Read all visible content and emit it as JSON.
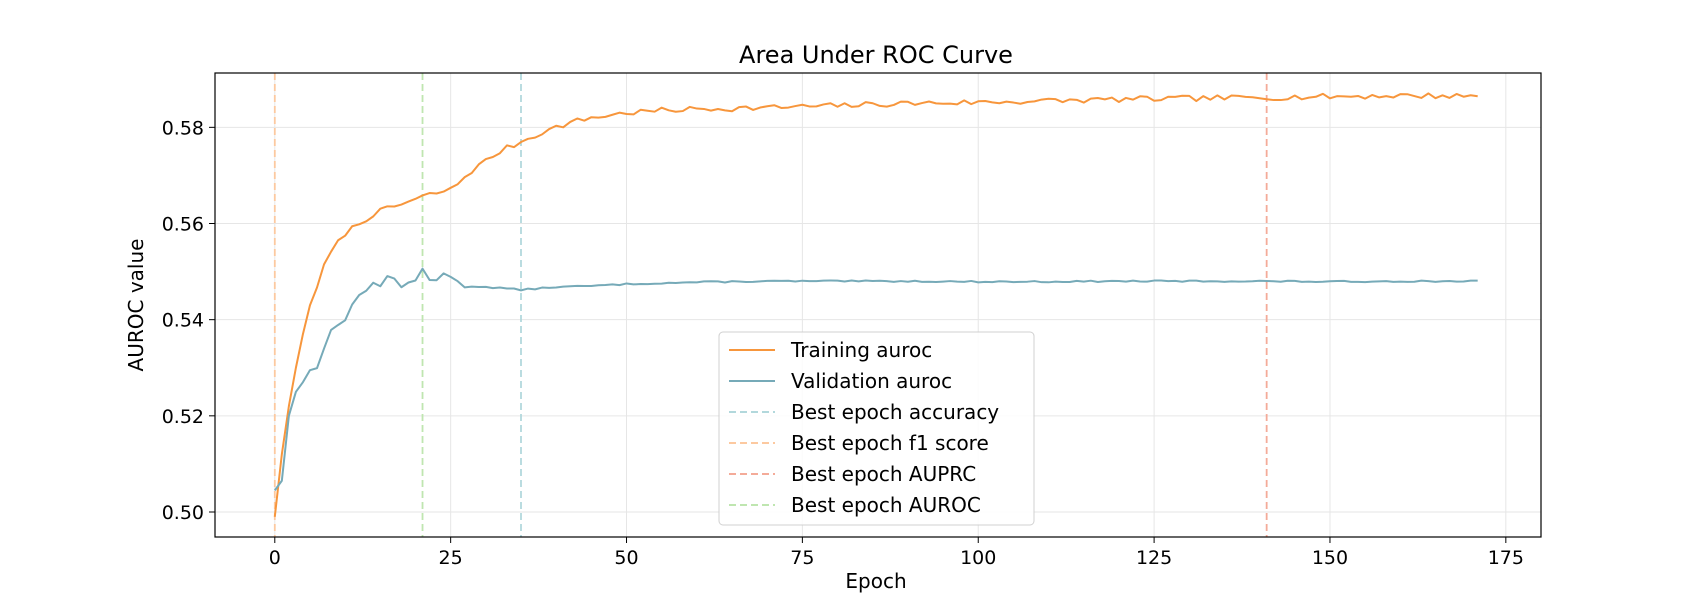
{
  "chart_data": {
    "type": "line",
    "title": "Area Under ROC Curve",
    "xlabel": "Epoch",
    "ylabel": "AUROC value",
    "xlim": [
      -8.5,
      180
    ],
    "ylim": [
      0.4948,
      0.5913
    ],
    "xticks": [
      0,
      25,
      50,
      75,
      100,
      125,
      150,
      175
    ],
    "yticks": [
      0.5,
      0.52,
      0.54,
      0.56,
      0.58
    ],
    "grid": true,
    "legend_position": "lower-center",
    "series": [
      {
        "name": "Training auroc",
        "color": "#f7963c",
        "style": "solid",
        "anchors": [
          [
            0,
            0.499
          ],
          [
            1,
            0.512
          ],
          [
            2,
            0.522
          ],
          [
            3,
            0.53
          ],
          [
            4,
            0.537
          ],
          [
            5,
            0.543
          ],
          [
            6,
            0.547
          ],
          [
            7,
            0.551
          ],
          [
            8,
            0.554
          ],
          [
            9,
            0.556
          ],
          [
            10,
            0.558
          ],
          [
            12,
            0.56
          ],
          [
            14,
            0.562
          ],
          [
            16,
            0.563
          ],
          [
            18,
            0.564
          ],
          [
            20,
            0.565
          ],
          [
            22,
            0.566
          ],
          [
            25,
            0.567
          ],
          [
            28,
            0.571
          ],
          [
            30,
            0.573
          ],
          [
            32,
            0.575
          ],
          [
            35,
            0.577
          ],
          [
            38,
            0.579
          ],
          [
            42,
            0.581
          ],
          [
            45,
            0.582
          ],
          [
            50,
            0.583
          ],
          [
            55,
            0.5835
          ],
          [
            60,
            0.5838
          ],
          [
            70,
            0.5841
          ],
          [
            80,
            0.5845
          ],
          [
            90,
            0.585
          ],
          [
            100,
            0.5852
          ],
          [
            110,
            0.5855
          ],
          [
            120,
            0.5858
          ],
          [
            130,
            0.586
          ],
          [
            140,
            0.5862
          ],
          [
            150,
            0.5864
          ],
          [
            160,
            0.5866
          ],
          [
            171,
            0.5865
          ]
        ],
        "noise": 0.0006,
        "seed": 7
      },
      {
        "name": "Validation auroc",
        "color": "#76aab8",
        "style": "solid",
        "anchors": [
          [
            0,
            0.5045
          ],
          [
            1,
            0.5065
          ],
          [
            2,
            0.52
          ],
          [
            3,
            0.525
          ],
          [
            4,
            0.527
          ],
          [
            5,
            0.5295
          ],
          [
            6,
            0.53
          ],
          [
            7,
            0.534
          ],
          [
            8,
            0.5378
          ],
          [
            9,
            0.539
          ],
          [
            10,
            0.54
          ],
          [
            11,
            0.5432
          ],
          [
            12,
            0.545
          ],
          [
            13,
            0.546
          ],
          [
            14,
            0.5478
          ],
          [
            15,
            0.547
          ],
          [
            16,
            0.549
          ],
          [
            17,
            0.5485
          ],
          [
            18,
            0.5468
          ],
          [
            19,
            0.5478
          ],
          [
            20,
            0.548
          ],
          [
            21,
            0.5506
          ],
          [
            22,
            0.5482
          ],
          [
            23,
            0.5482
          ],
          [
            24,
            0.5497
          ],
          [
            25,
            0.549
          ],
          [
            26,
            0.548
          ],
          [
            27,
            0.5466
          ],
          [
            28,
            0.547
          ],
          [
            30,
            0.5468
          ],
          [
            32,
            0.5466
          ],
          [
            35,
            0.5462
          ],
          [
            40,
            0.5468
          ],
          [
            45,
            0.547
          ],
          [
            50,
            0.5474
          ],
          [
            60,
            0.5478
          ],
          [
            70,
            0.548
          ],
          [
            80,
            0.548
          ],
          [
            90,
            0.548
          ],
          [
            100,
            0.5479
          ],
          [
            110,
            0.5479
          ],
          [
            120,
            0.548
          ],
          [
            130,
            0.548
          ],
          [
            140,
            0.548
          ],
          [
            150,
            0.5479
          ],
          [
            160,
            0.548
          ],
          [
            171,
            0.548
          ]
        ],
        "noise": 0.00015,
        "seed": 13
      }
    ],
    "vlines": [
      {
        "name": "Best epoch accuracy",
        "x": 35,
        "color": "#b2d8dc"
      },
      {
        "name": "Best epoch f1 score",
        "x": 0,
        "color": "#fcc9a0"
      },
      {
        "name": "Best epoch AUPRC",
        "x": 141,
        "color": "#f4ab99"
      },
      {
        "name": "Best epoch AUROC",
        "x": 21,
        "color": "#bfe6b0"
      }
    ]
  }
}
